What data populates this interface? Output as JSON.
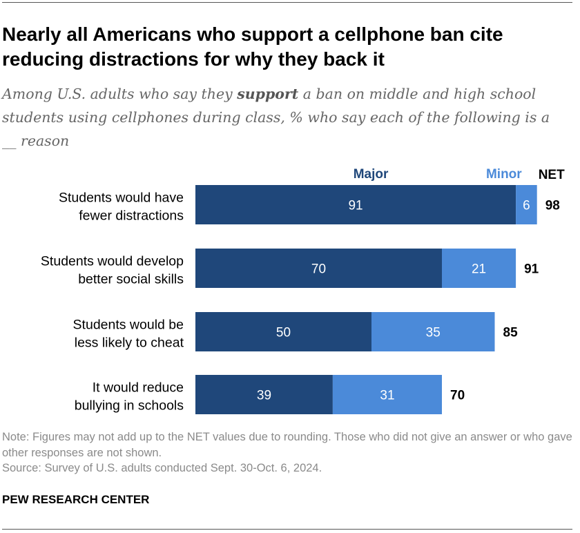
{
  "title": "Nearly all Americans who support a cellphone ban cite reducing distractions for why they back it",
  "subtitle": {
    "before": "Among U.S. adults who say they ",
    "emphasis": "support",
    "after": " a ban on middle and high school students using cellphones during class, % who say each of the following is a __ reason"
  },
  "chart_data": {
    "type": "bar",
    "orientation": "horizontal",
    "stacked": true,
    "categories": [
      [
        "Students would have",
        "fewer distractions"
      ],
      [
        "Students would develop",
        "better social skills"
      ],
      [
        "Students would be",
        "less likely to cheat"
      ],
      [
        "It would reduce",
        "bullying in schools"
      ]
    ],
    "series": [
      {
        "name": "Major",
        "values": [
          91,
          70,
          50,
          39
        ],
        "color": "#1f477a"
      },
      {
        "name": "Minor",
        "values": [
          6,
          21,
          35,
          31
        ],
        "color": "#4b8ad9"
      }
    ],
    "net_label": "NET",
    "net_values": [
      98,
      91,
      85,
      70
    ],
    "legend_placement": "top",
    "grid": false
  },
  "notes": {
    "note": "Note: Figures may not add up to the NET values due to rounding. Those who did not give an answer or who gave other responses are not shown.",
    "source": "Source: Survey of U.S. adults conducted Sept. 30-Oct. 6, 2024."
  },
  "org": "PEW RESEARCH CENTER"
}
